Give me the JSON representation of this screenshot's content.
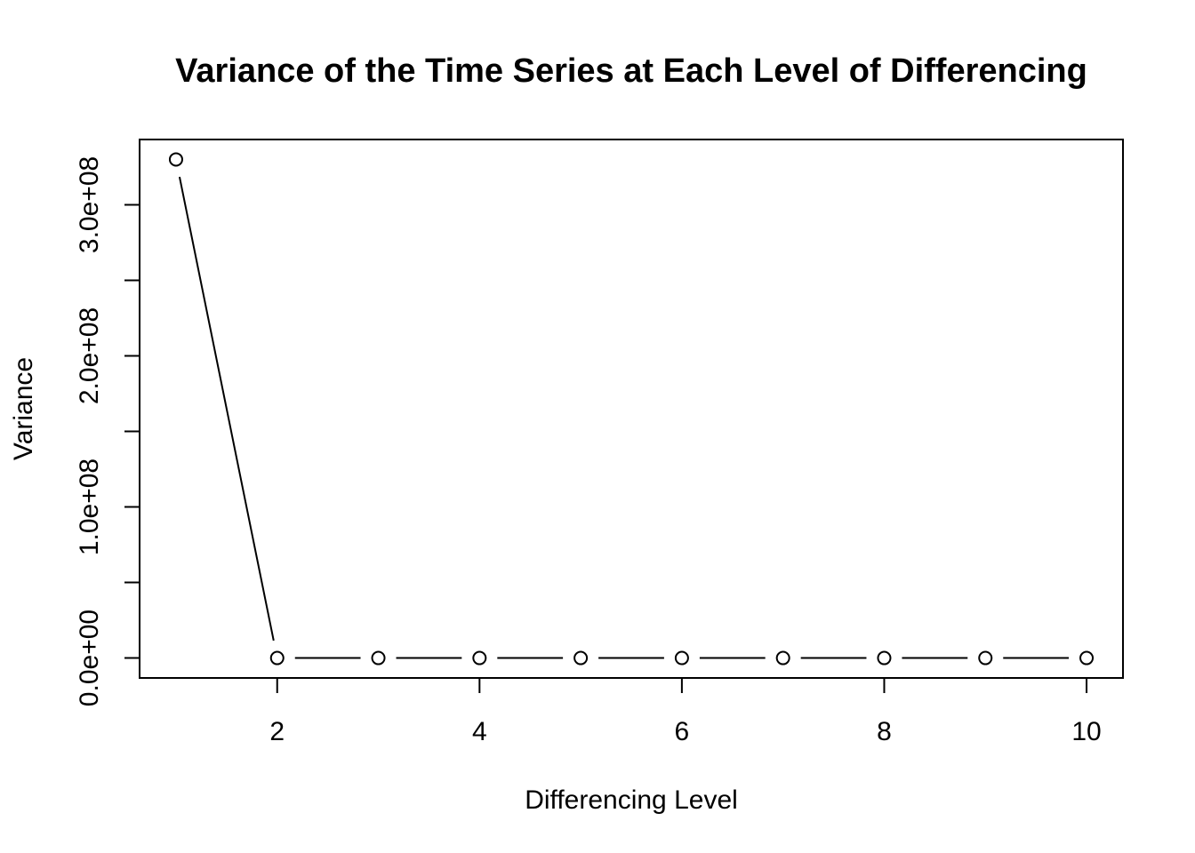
{
  "chart_data": {
    "type": "line",
    "title": "Variance of the Time Series at Each Level of Differencing",
    "xlabel": "Differencing Level",
    "ylabel": "Variance",
    "x": [
      1,
      2,
      3,
      4,
      5,
      6,
      7,
      8,
      9,
      10
    ],
    "series": [
      {
        "values": [
          330000000,
          0,
          0,
          0,
          0,
          0,
          0,
          0,
          0,
          0
        ]
      }
    ],
    "xticks": [
      2,
      4,
      6,
      8,
      10
    ],
    "xtick_labels": [
      "2",
      "4",
      "6",
      "8",
      "10"
    ],
    "yticks": [
      0,
      50000000,
      100000000,
      150000000,
      200000000,
      250000000,
      300000000
    ],
    "ytick_labels": [
      "0.0e+00",
      "",
      "1.0e+08",
      "",
      "2.0e+08",
      "",
      "3.0e+08"
    ],
    "xlim": [
      0.64,
      10.36
    ],
    "ylim": [
      -13200000,
      343200000
    ],
    "grid": false,
    "marker": "open-circle"
  }
}
